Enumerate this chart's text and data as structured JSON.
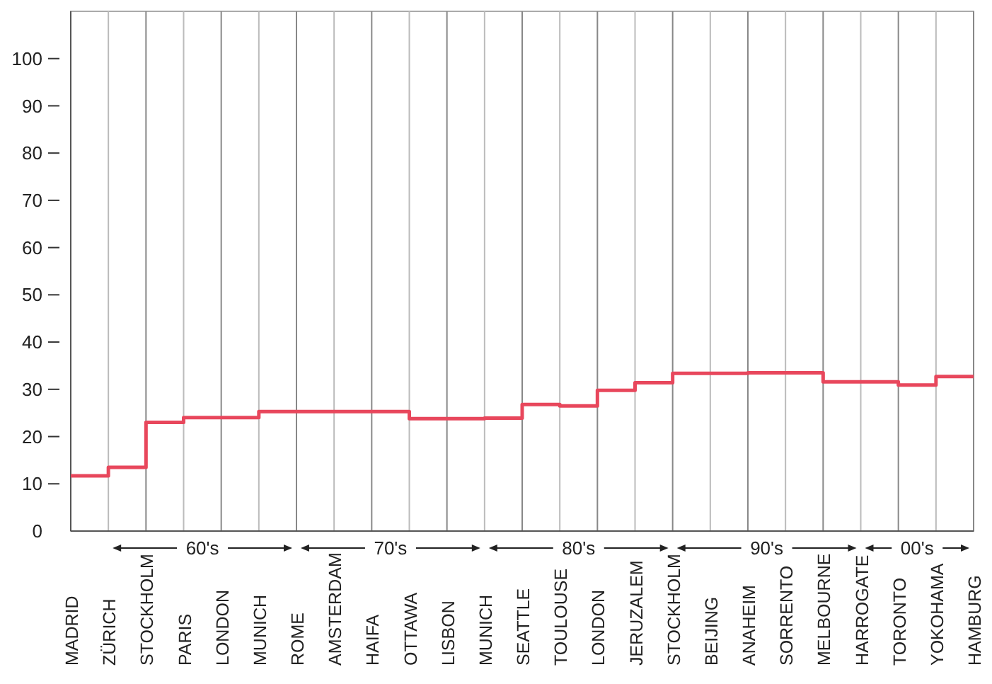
{
  "chart_data": {
    "type": "step",
    "categories": [
      "MADRID",
      "ZÜRICH",
      "STOCKHOLM",
      "PARIS",
      "LONDON",
      "MUNICH",
      "ROME",
      "AMSTERDAM",
      "HAIFA",
      "OTTAWA",
      "LISBON",
      "MUNICH",
      "SEATTLE",
      "TOULOUSE",
      "LONDON",
      "JERUZALEM",
      "STOCKHOLM",
      "BEIJING",
      "ANAHEIM",
      "SORRENTO",
      "MELBOURNE",
      "HARROGATE",
      "TORONTO",
      "YOKOHAMA",
      "HAMBURG"
    ],
    "series": [
      {
        "color": "#e8475c",
        "values": [
          11.7,
          13.5,
          23,
          24,
          24,
          25.3,
          25.3,
          25.3,
          25.3,
          23.8,
          23.8,
          23.9,
          26.8,
          26.5,
          29.8,
          31.4,
          33.4,
          33.4,
          33.5,
          33.5,
          31.6,
          31.6,
          30.9,
          32.7,
          32.7
        ]
      }
    ],
    "ylim": [
      0,
      110
    ],
    "yticks": [
      0,
      10,
      20,
      30,
      40,
      50,
      60,
      70,
      80,
      90,
      100
    ],
    "grid": "x",
    "annotations": [
      "60's",
      "70's",
      "80's",
      "90's",
      "00's"
    ]
  }
}
